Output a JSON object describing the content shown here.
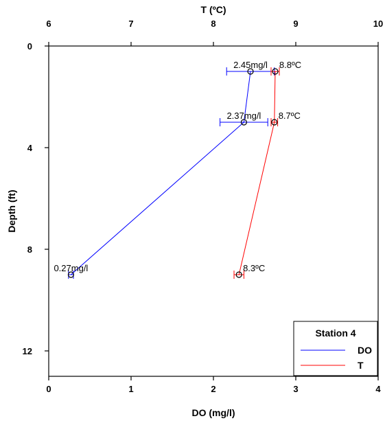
{
  "chart_data": {
    "type": "scatter",
    "title": "",
    "xlabel": "DO (mg/l)",
    "x2label": "T (ºC)",
    "ylabel": "Depth (ft)",
    "xlim": [
      0,
      4
    ],
    "x2lim": [
      6,
      10
    ],
    "ylim": [
      0,
      13
    ],
    "y_inverted": true,
    "x_ticks": [
      "0",
      "1",
      "2",
      "3",
      "4"
    ],
    "x2_ticks": [
      "6",
      "7",
      "8",
      "9",
      "10"
    ],
    "y_ticks": [
      "0",
      "4",
      "8",
      "12"
    ],
    "grid": false,
    "legend": {
      "title": "Station 4",
      "position": "bottom-right"
    },
    "series": [
      {
        "name": "DO",
        "axis": "bottom",
        "color": "#0000ff",
        "points": [
          {
            "x": 2.45,
            "y": 1,
            "err": 0.29,
            "label": "2.45mg/l"
          },
          {
            "x": 2.37,
            "y": 3,
            "err": 0.29,
            "label": "2.37mg/l"
          },
          {
            "x": 0.27,
            "y": 9,
            "err": 0.03,
            "label": "0.27mg/l"
          }
        ]
      },
      {
        "name": "T",
        "axis": "top",
        "color": "#ff0000",
        "points": [
          {
            "x": 8.75,
            "y": 1,
            "err": 0.05,
            "label": "8.8ºC"
          },
          {
            "x": 8.74,
            "y": 3,
            "err": 0.04,
            "label": "8.7ºC"
          },
          {
            "x": 8.31,
            "y": 9,
            "err": 0.06,
            "label": "8.3ºC"
          }
        ]
      }
    ]
  }
}
